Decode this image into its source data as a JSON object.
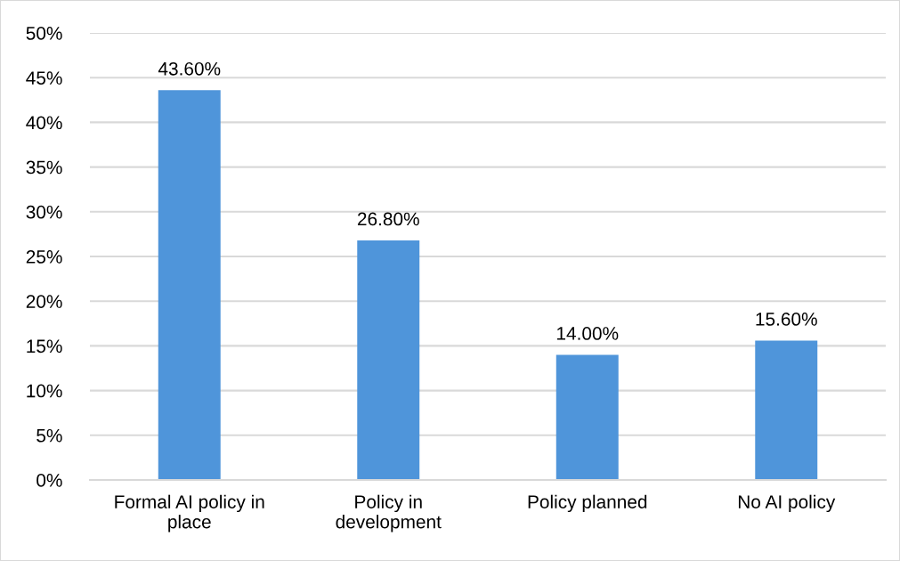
{
  "chart_data": {
    "type": "bar",
    "categories": [
      "Formal AI policy in\nplace",
      "Policy in\ndevelopment",
      "Policy planned",
      "No AI policy"
    ],
    "values": [
      43.6,
      26.8,
      14.0,
      15.6
    ],
    "color": "#4f95da",
    "value_labels": [
      "43.60%",
      "26.80%",
      "14.00%",
      "15.60%"
    ],
    "ylim": [
      0,
      50
    ],
    "yticks": [
      {
        "value": 0,
        "label": "0%"
      },
      {
        "value": 5,
        "label": "5%"
      },
      {
        "value": 10,
        "label": "10%"
      },
      {
        "value": 15,
        "label": "15%"
      },
      {
        "value": 20,
        "label": "20%"
      },
      {
        "value": 25,
        "label": "25%"
      },
      {
        "value": 30,
        "label": "30%"
      },
      {
        "value": 35,
        "label": "35%"
      },
      {
        "value": 40,
        "label": "40%"
      },
      {
        "value": 45,
        "label": "45%"
      },
      {
        "value": 50,
        "label": "50%"
      }
    ],
    "grid": "y",
    "legend": false
  }
}
